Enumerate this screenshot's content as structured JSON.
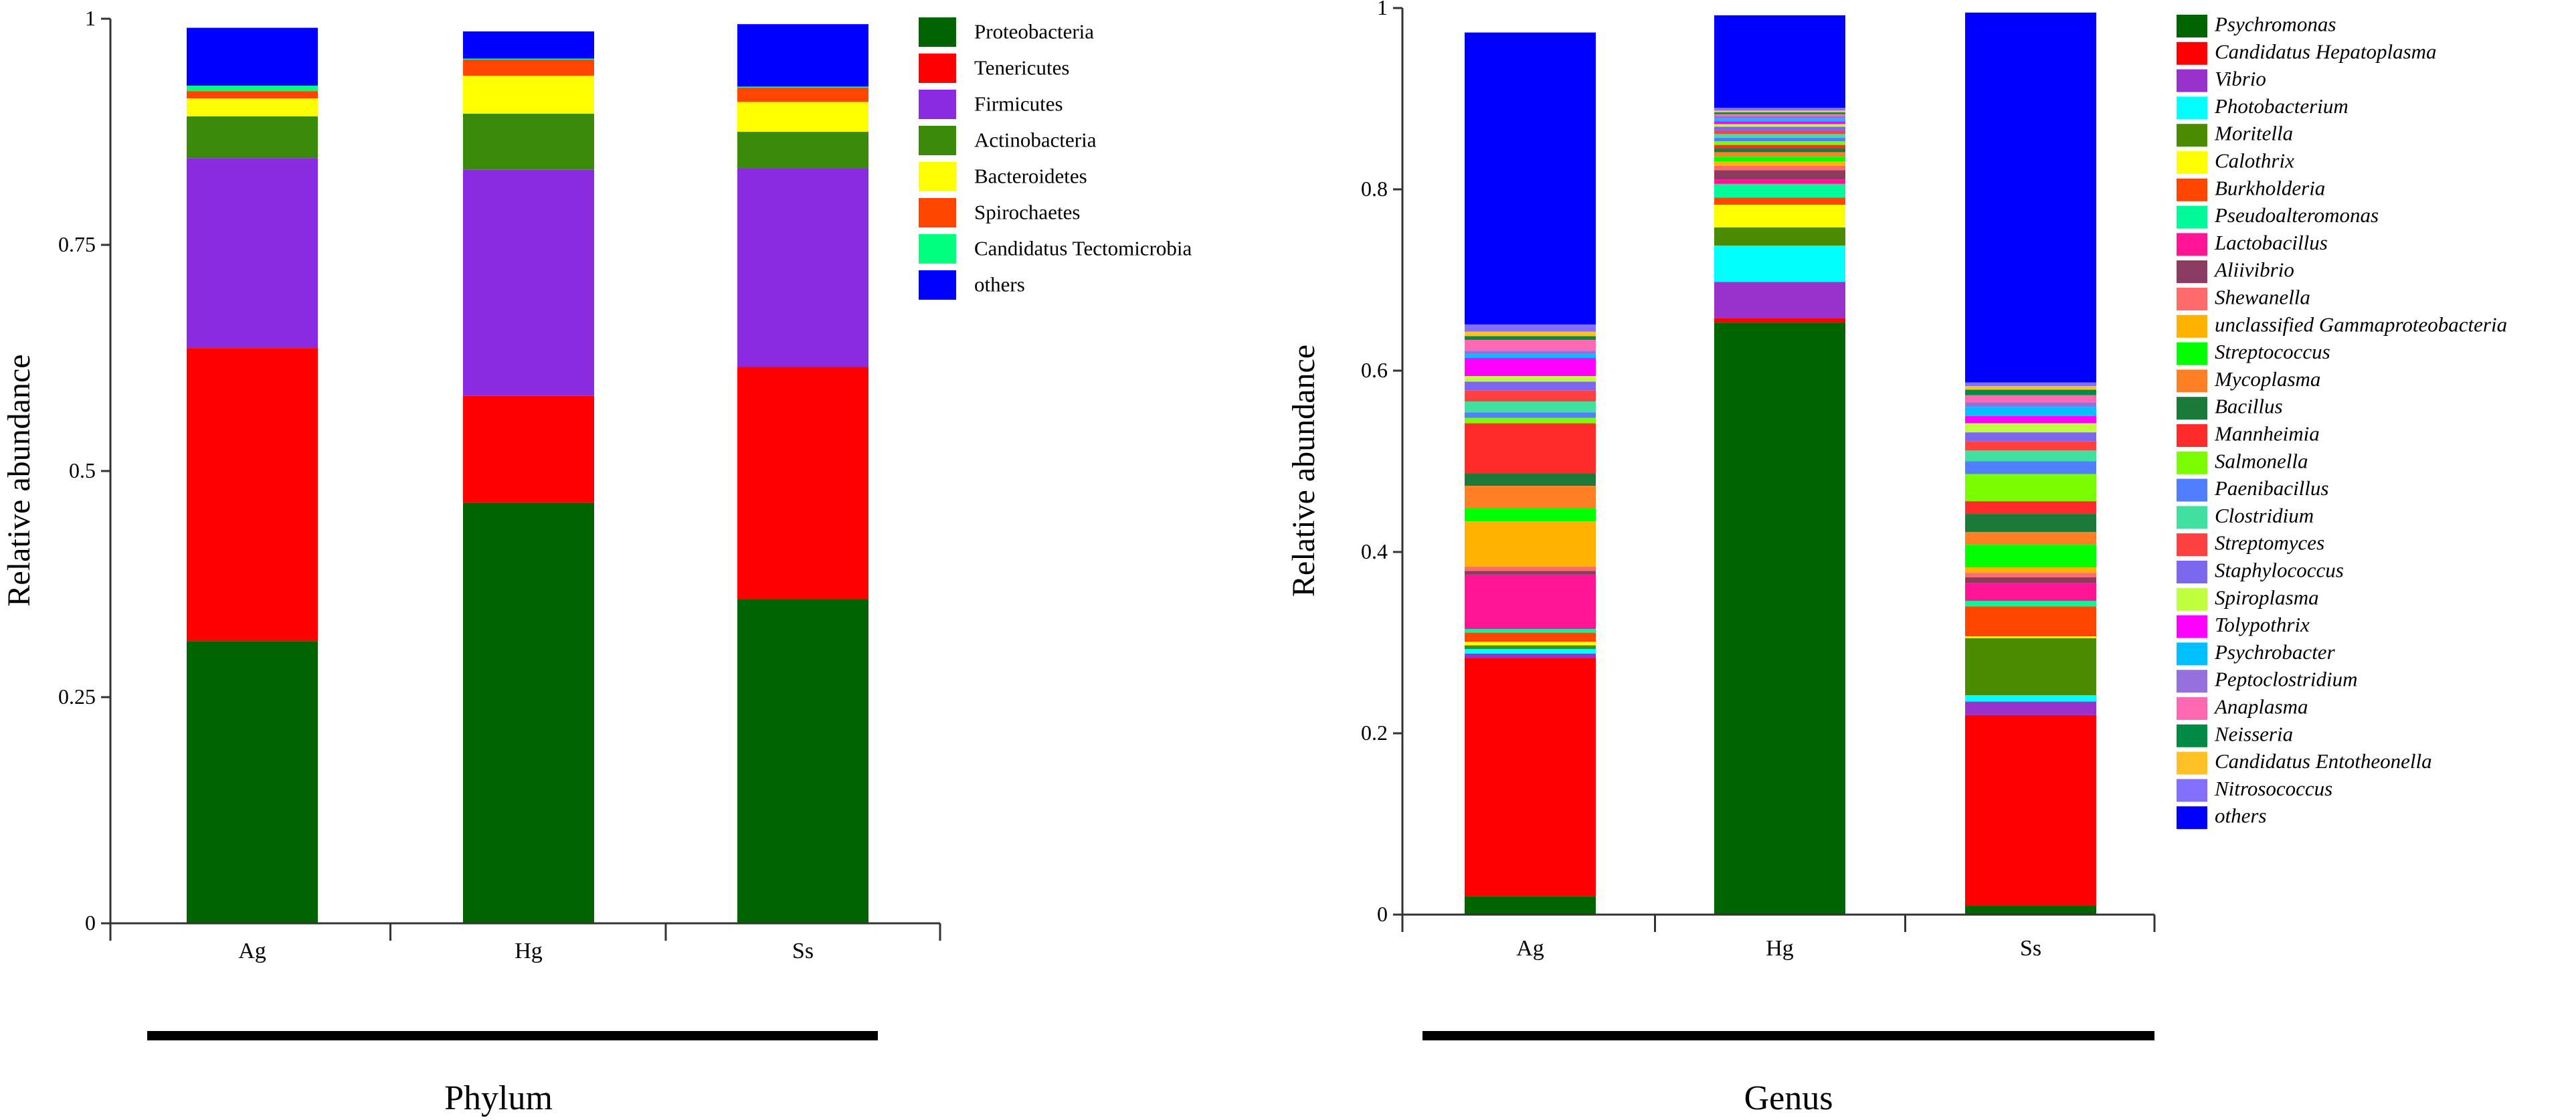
{
  "chart_data": [
    {
      "type": "bar",
      "stacked": true,
      "title": "Phylum",
      "xlabel": "",
      "ylabel": "Relative abundance",
      "ylim": [
        0,
        1
      ],
      "yticks": [
        0,
        0.25,
        0.5,
        0.75,
        1
      ],
      "ytick_labels": [
        "0",
        "0.25",
        "0.5",
        "0.75",
        "1"
      ],
      "categories": [
        "Ag",
        "Hg",
        "Ss"
      ],
      "legend_position": "right",
      "series": [
        {
          "name": "Proteobacteria",
          "color": "#006400",
          "values": [
            0.312,
            0.465,
            0.358
          ]
        },
        {
          "name": "Tenericutes",
          "color": "#ff0000",
          "values": [
            0.324,
            0.118,
            0.257
          ]
        },
        {
          "name": "Firmicutes",
          "color": "#8a2be2",
          "values": [
            0.21,
            0.25,
            0.22
          ]
        },
        {
          "name": "Actinobacteria",
          "color": "#3a8a0a",
          "values": [
            0.046,
            0.062,
            0.04
          ]
        },
        {
          "name": "Bacteroidetes",
          "color": "#ffff00",
          "values": [
            0.02,
            0.042,
            0.033
          ]
        },
        {
          "name": "Spirochaetes",
          "color": "#ff4500",
          "values": [
            0.008,
            0.018,
            0.016
          ]
        },
        {
          "name": "Candidatus Tectomicrobia",
          "color": "#00ff7f",
          "values": [
            0.006,
            0.001,
            0.001
          ]
        },
        {
          "name": "others",
          "color": "#0000ff",
          "values": [
            0.064,
            0.03,
            0.069
          ]
        }
      ]
    },
    {
      "type": "bar",
      "stacked": true,
      "title": "Genus",
      "xlabel": "",
      "ylabel": "Relative abundance",
      "ylim": [
        0,
        1
      ],
      "yticks": [
        0,
        0.2,
        0.4,
        0.6,
        0.8,
        1
      ],
      "ytick_labels": [
        "0",
        "0.2",
        "0.4",
        "0.6",
        "0.8",
        "1"
      ],
      "categories": [
        "Ag",
        "Hg",
        "Ss"
      ],
      "legend_position": "right",
      "series": [
        {
          "name": "Psychromonas",
          "color": "#006400",
          "values": [
            0.02,
            0.653,
            0.01
          ]
        },
        {
          "name": "Candidatus Hepatoplasma",
          "color": "#ff0000",
          "values": [
            0.263,
            0.005,
            0.21
          ]
        },
        {
          "name": "Vibrio",
          "color": "#9932cc",
          "values": [
            0.005,
            0.04,
            0.015
          ]
        },
        {
          "name": "Photobacterium",
          "color": "#00ffff",
          "values": [
            0.005,
            0.04,
            0.007
          ]
        },
        {
          "name": "Moritella",
          "color": "#4b8b00",
          "values": [
            0.004,
            0.02,
            0.063
          ]
        },
        {
          "name": "Calothrix",
          "color": "#ffff00",
          "values": [
            0.004,
            0.025,
            0.002
          ]
        },
        {
          "name": "Burkholderia",
          "color": "#ff4500",
          "values": [
            0.01,
            0.008,
            0.033
          ]
        },
        {
          "name": "Pseudoalteromonas",
          "color": "#00fa9a",
          "values": [
            0.004,
            0.015,
            0.006
          ]
        },
        {
          "name": "Lactobacillus",
          "color": "#ff1493",
          "values": [
            0.06,
            0.005,
            0.02
          ]
        },
        {
          "name": "Aliivibrio",
          "color": "#8b3a62",
          "values": [
            0.004,
            0.01,
            0.006
          ]
        },
        {
          "name": "Shewanella",
          "color": "#ff6a6a",
          "values": [
            0.005,
            0.005,
            0.005
          ]
        },
        {
          "name": "unclassified Gammaproteobacteria",
          "color": "#ffb300",
          "values": [
            0.05,
            0.005,
            0.006
          ]
        },
        {
          "name": "Streptococcus",
          "color": "#00ff00",
          "values": [
            0.014,
            0.005,
            0.025
          ]
        },
        {
          "name": "Mycoplasma",
          "color": "#ff7f24",
          "values": [
            0.025,
            0.005,
            0.014
          ]
        },
        {
          "name": "Bacillus",
          "color": "#1b7a3a",
          "values": [
            0.014,
            0.004,
            0.02
          ]
        },
        {
          "name": "Mannheimia",
          "color": "#ff2a2a",
          "values": [
            0.055,
            0.004,
            0.014
          ]
        },
        {
          "name": "Salmonella",
          "color": "#7cfc00",
          "values": [
            0.006,
            0.004,
            0.03
          ]
        },
        {
          "name": "Paenibacillus",
          "color": "#4f7fff",
          "values": [
            0.006,
            0.004,
            0.014
          ]
        },
        {
          "name": "Clostridium",
          "color": "#40e0a0",
          "values": [
            0.012,
            0.004,
            0.012
          ]
        },
        {
          "name": "Streptomyces",
          "color": "#ff4040",
          "values": [
            0.012,
            0.004,
            0.01
          ]
        },
        {
          "name": "Staphylococcus",
          "color": "#7b68ee",
          "values": [
            0.01,
            0.004,
            0.01
          ]
        },
        {
          "name": "Spiroplasma",
          "color": "#c0ff3e",
          "values": [
            0.006,
            0.003,
            0.01
          ]
        },
        {
          "name": "Tolypothrix",
          "color": "#ff00ff",
          "values": [
            0.02,
            0.003,
            0.008
          ]
        },
        {
          "name": "Psychrobacter",
          "color": "#00bfff",
          "values": [
            0.004,
            0.003,
            0.01
          ]
        },
        {
          "name": "Peptoclostridium",
          "color": "#9370db",
          "values": [
            0.004,
            0.003,
            0.005
          ]
        },
        {
          "name": "Anaplasma",
          "color": "#ff69b4",
          "values": [
            0.012,
            0.002,
            0.008
          ]
        },
        {
          "name": "Neisseria",
          "color": "#008b45",
          "values": [
            0.004,
            0.002,
            0.006
          ]
        },
        {
          "name": "Candidatus Entotheonella",
          "color": "#ffc125",
          "values": [
            0.005,
            0.002,
            0.004
          ]
        },
        {
          "name": "Nitrosococcus",
          "color": "#8470ff",
          "values": [
            0.008,
            0.003,
            0.004
          ]
        },
        {
          "name": "others",
          "color": "#0000ff",
          "values": [
            0.322,
            0.102,
            0.408
          ]
        }
      ]
    }
  ]
}
